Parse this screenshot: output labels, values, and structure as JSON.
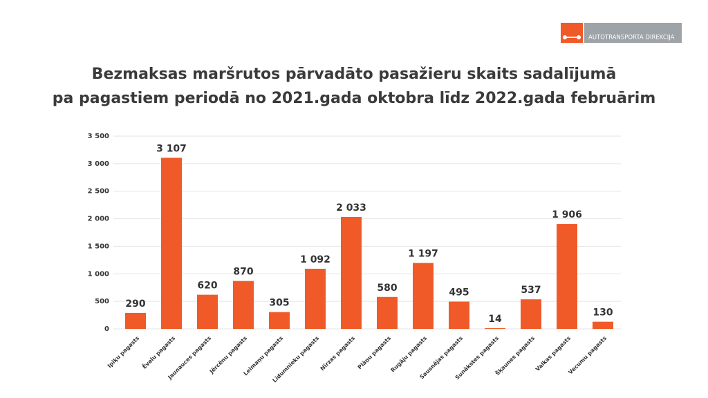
{
  "logo": {
    "text": "AUTOTRANSPORTA DIREKCIJA"
  },
  "chart_data": {
    "type": "bar",
    "title": [
      "Bezmaksas maršrutos pārvadāto pasažieru skaits sadalījumā",
      "pa pagastiem periodā no 2021.gada oktobra līdz 2022.gada februārim"
    ],
    "categories": [
      "Ipiķu pagasts",
      "Ēvelu pagasts",
      "Jaunauces pagasts",
      "Jērcēnu pagasts",
      "Leimaņu pagasts",
      "Līdumnieku pagasts",
      "Nīrzas pagasts",
      "Plāņu pagasts",
      "Rugāju pagasts",
      "Sausnējas pagasts",
      "Sunākstes pagasts",
      "Šķaunes pagasts",
      "Valkas pagasts",
      "Vecumu pagasts"
    ],
    "values": [
      290,
      3107,
      620,
      870,
      305,
      1092,
      2033,
      580,
      1197,
      495,
      14,
      537,
      1906,
      130
    ],
    "value_labels": [
      "290",
      "3 107",
      "620",
      "870",
      "305",
      "1 092",
      "2 033",
      "580",
      "1 197",
      "495",
      "14",
      "537",
      "1 906",
      "130"
    ],
    "color": "#f05a28",
    "ylim": [
      0,
      3500
    ],
    "yticks": [
      0,
      500,
      {
        "value": 1000,
        "label": "1 000"
      },
      {
        "value": 1500,
        "label": "1 500"
      },
      {
        "value": 2000,
        "label": "2 000"
      },
      {
        "value": 2500,
        "label": "2 500"
      },
      {
        "value": 3000,
        "label": "3 000"
      },
      {
        "value": 3500,
        "label": "3 500"
      }
    ],
    "grid": true
  }
}
